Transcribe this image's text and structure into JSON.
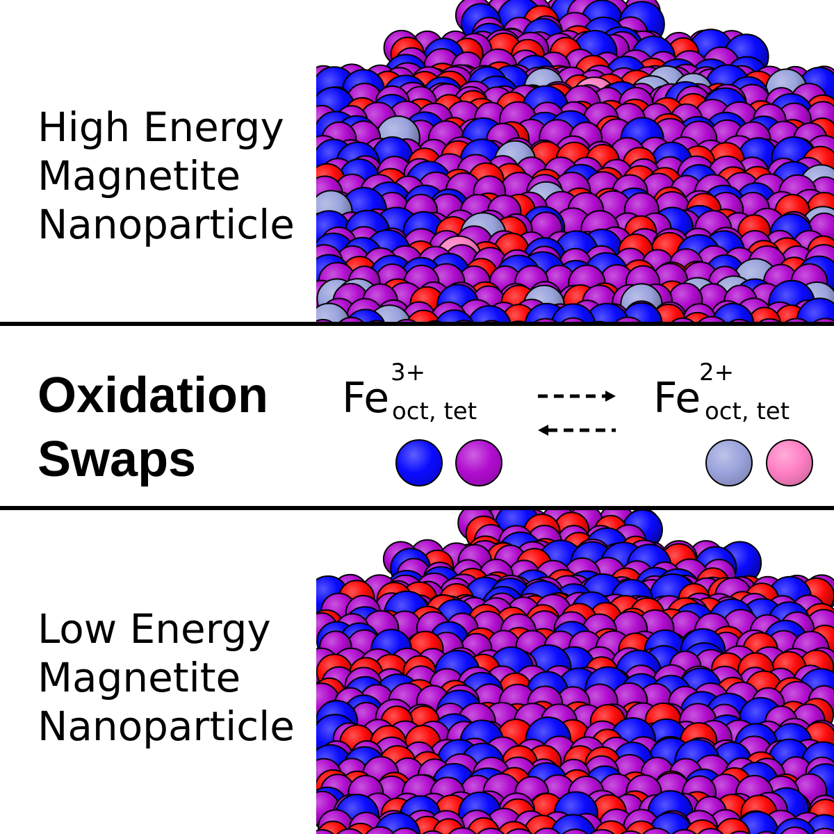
{
  "labels": {
    "high": [
      "High Energy",
      "Magnetite",
      "Nanoparticle"
    ],
    "middle": [
      "Oxidation",
      "Swaps"
    ],
    "low": [
      "Low Energy",
      "Magnetite",
      "Nanoparticle"
    ]
  },
  "legend": {
    "fe3": {
      "element": "Fe",
      "charge": "3+",
      "sites": "oct, tet"
    },
    "fe2": {
      "element": "Fe",
      "charge": "2+",
      "sites": "oct, tet"
    }
  },
  "colors": {
    "fe3_oct": "#0a0aff",
    "fe3_tet": "#b10ccf",
    "fe2_oct": "#9aa3dc",
    "fe2_tet": "#ff7fc4",
    "oxygen": "#ff0a0a"
  }
}
